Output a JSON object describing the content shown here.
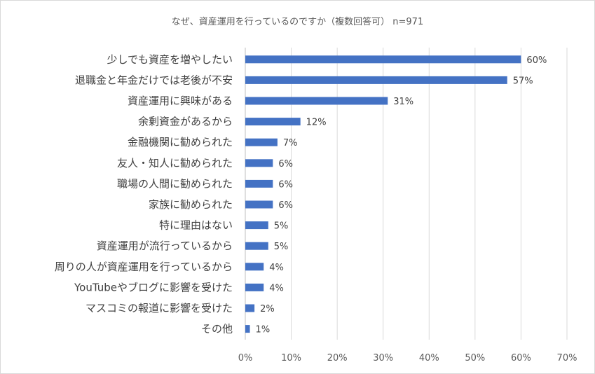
{
  "chart_data": {
    "type": "bar",
    "orientation": "horizontal",
    "title": "なぜ、資産運用を行っているのですか（複数回答可） n=971",
    "categories": [
      "少しでも資産を増やしたい",
      "退職金と年金だけでは老後が不安",
      "資産運用に興味がある",
      "余剰資金があるから",
      "金融機関に勧められた",
      "友人・知人に勧められた",
      "職場の人間に勧められた",
      "家族に勧められた",
      "特に理由はない",
      "資産運用が流行っているから",
      "周りの人が資産運用を行っているから",
      "YouTubeやブログに影響を受けた",
      "マスコミの報道に影響を受けた",
      "その他"
    ],
    "values": [
      60,
      57,
      31,
      12,
      7,
      6,
      6,
      6,
      5,
      5,
      4,
      4,
      2,
      1
    ],
    "value_labels": [
      "60%",
      "57%",
      "31%",
      "12%",
      "7%",
      "6%",
      "6%",
      "6%",
      "5%",
      "5%",
      "4%",
      "4%",
      "2%",
      "1%"
    ],
    "xlim": [
      0,
      70
    ],
    "ticks": [
      0,
      10,
      20,
      30,
      40,
      50,
      60,
      70
    ],
    "tick_labels": [
      "0%",
      "10%",
      "20%",
      "30%",
      "40%",
      "50%",
      "60%",
      "70%"
    ],
    "grid": true,
    "bar_color": "#4472c4",
    "grid_color": "#d9d9d9"
  }
}
